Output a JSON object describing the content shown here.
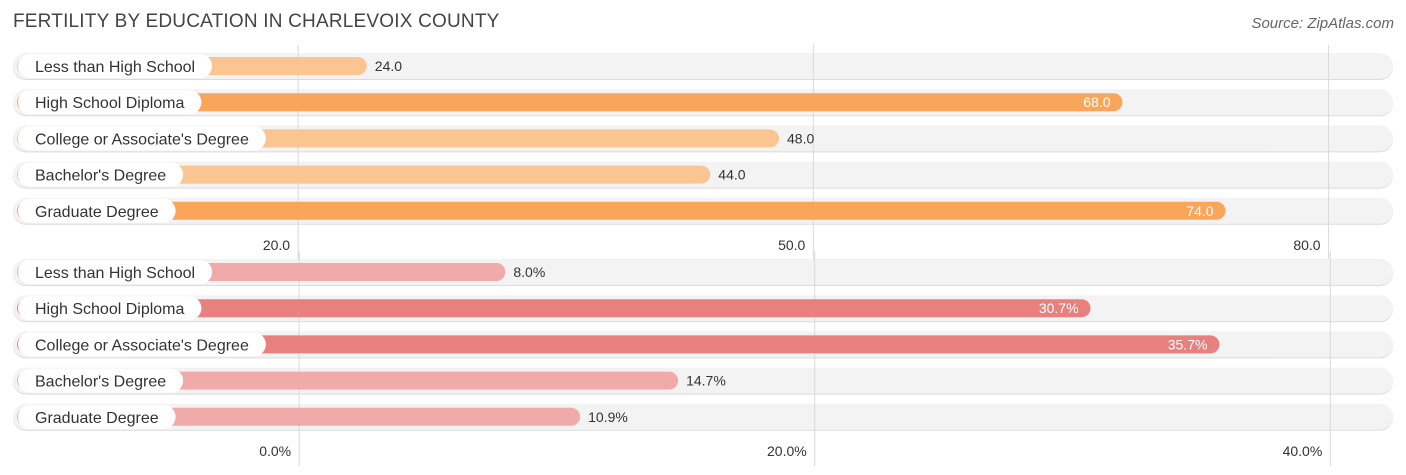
{
  "header": {
    "title": "FERTILITY BY EDUCATION IN CHARLEVOIX COUNTY",
    "source": "Source: ZipAtlas.com"
  },
  "chart_data": [
    {
      "type": "bar",
      "orientation": "horizontal",
      "categories": [
        "Less than High School",
        "High School Diploma",
        "College or Associate's Degree",
        "Bachelor's Degree",
        "Graduate Degree"
      ],
      "values": [
        24.0,
        68.0,
        48.0,
        44.0,
        74.0
      ],
      "value_labels": [
        "24.0",
        "68.0",
        "48.0",
        "44.0",
        "74.0"
      ],
      "ticks": [
        "20.0",
        "50.0",
        "80.0"
      ],
      "tick_values": [
        20,
        50,
        80
      ],
      "xlim": [
        3.4,
        83.4
      ],
      "colors": {
        "strong": "#f9a55a",
        "light": "#fbc592"
      },
      "grid": true
    },
    {
      "type": "bar",
      "orientation": "horizontal",
      "categories": [
        "Less than High School",
        "High School Diploma",
        "College or Associate's Degree",
        "Bachelor's Degree",
        "Graduate Degree"
      ],
      "values": [
        8.0,
        30.7,
        35.7,
        14.7,
        10.9
      ],
      "value_labels": [
        "8.0%",
        "30.7%",
        "35.7%",
        "14.7%",
        "10.9%"
      ],
      "ticks": [
        "0.0%",
        "20.0%",
        "40.0%"
      ],
      "tick_values": [
        0,
        20,
        40
      ],
      "xlim": [
        -11.1,
        42.2
      ],
      "colors": {
        "strong": "#e8807e",
        "light": "#f0aaa9"
      },
      "grid": true
    }
  ]
}
